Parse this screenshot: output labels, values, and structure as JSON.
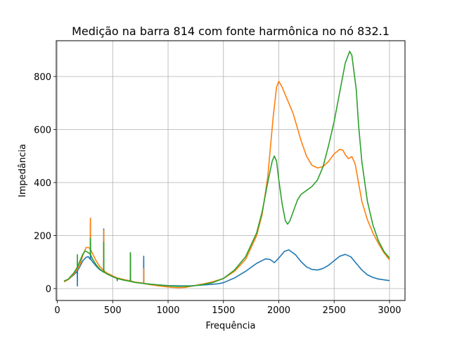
{
  "chart_data": {
    "type": "line",
    "title": "Medição na barra 814 com fonte harmônica no nó 832.1",
    "xlabel": "Frequência",
    "ylabel": "Impedância",
    "xlim": [
      -10,
      3140
    ],
    "ylim": [
      -45,
      935
    ],
    "x_ticks": [
      0,
      500,
      1000,
      1500,
      2000,
      2500,
      3000
    ],
    "y_ticks": [
      0,
      200,
      400,
      600,
      800
    ],
    "grid": true,
    "legend": "none",
    "series": [
      {
        "color": "#1f77b4",
        "points": [
          [
            60,
            28
          ],
          [
            100,
            35
          ],
          [
            150,
            52
          ],
          [
            180,
            65
          ],
          [
            181,
            10
          ],
          [
            182,
            68
          ],
          [
            200,
            80
          ],
          [
            230,
            105
          ],
          [
            260,
            118
          ],
          [
            280,
            120
          ],
          [
            298,
            110
          ],
          [
            299,
            265
          ],
          [
            300,
            112
          ],
          [
            320,
            100
          ],
          [
            350,
            85
          ],
          [
            380,
            72
          ],
          [
            418,
            62
          ],
          [
            419,
            225
          ],
          [
            420,
            63
          ],
          [
            450,
            55
          ],
          [
            500,
            45
          ],
          [
            540,
            38
          ],
          [
            541,
            30
          ],
          [
            542,
            38
          ],
          [
            600,
            32
          ],
          [
            659,
            28
          ],
          [
            660,
            135
          ],
          [
            661,
            28
          ],
          [
            700,
            24
          ],
          [
            779,
            20
          ],
          [
            780,
            122
          ],
          [
            781,
            20
          ],
          [
            800,
            18
          ],
          [
            850,
            16
          ],
          [
            900,
            14
          ],
          [
            1000,
            11
          ],
          [
            1100,
            10
          ],
          [
            1200,
            10
          ],
          [
            1300,
            13
          ],
          [
            1400,
            16
          ],
          [
            1450,
            18
          ],
          [
            1500,
            22
          ],
          [
            1600,
            40
          ],
          [
            1700,
            65
          ],
          [
            1800,
            95
          ],
          [
            1880,
            112
          ],
          [
            1920,
            110
          ],
          [
            1960,
            98
          ],
          [
            2000,
            115
          ],
          [
            2050,
            140
          ],
          [
            2090,
            146
          ],
          [
            2150,
            128
          ],
          [
            2200,
            102
          ],
          [
            2250,
            82
          ],
          [
            2300,
            72
          ],
          [
            2350,
            70
          ],
          [
            2400,
            76
          ],
          [
            2450,
            88
          ],
          [
            2500,
            105
          ],
          [
            2550,
            122
          ],
          [
            2600,
            129
          ],
          [
            2650,
            120
          ],
          [
            2700,
            95
          ],
          [
            2750,
            70
          ],
          [
            2800,
            52
          ],
          [
            2850,
            42
          ],
          [
            2900,
            36
          ],
          [
            3000,
            30
          ]
        ]
      },
      {
        "color": "#ff7f0e",
        "points": [
          [
            60,
            25
          ],
          [
            100,
            34
          ],
          [
            150,
            55
          ],
          [
            200,
            85
          ],
          [
            230,
            125
          ],
          [
            260,
            155
          ],
          [
            280,
            155
          ],
          [
            298,
            150
          ],
          [
            299,
            265
          ],
          [
            300,
            148
          ],
          [
            320,
            130
          ],
          [
            350,
            105
          ],
          [
            380,
            85
          ],
          [
            418,
            68
          ],
          [
            419,
            220
          ],
          [
            420,
            68
          ],
          [
            450,
            58
          ],
          [
            500,
            48
          ],
          [
            540,
            40
          ],
          [
            541,
            32
          ],
          [
            542,
            40
          ],
          [
            600,
            34
          ],
          [
            659,
            29
          ],
          [
            660,
            130
          ],
          [
            661,
            29
          ],
          [
            700,
            24
          ],
          [
            779,
            20
          ],
          [
            780,
            75
          ],
          [
            781,
            20
          ],
          [
            800,
            17
          ],
          [
            850,
            14
          ],
          [
            900,
            11
          ],
          [
            1000,
            6
          ],
          [
            1050,
            4
          ],
          [
            1100,
            3
          ],
          [
            1150,
            4
          ],
          [
            1200,
            8
          ],
          [
            1300,
            16
          ],
          [
            1400,
            25
          ],
          [
            1500,
            38
          ],
          [
            1600,
            65
          ],
          [
            1700,
            110
          ],
          [
            1800,
            200
          ],
          [
            1850,
            280
          ],
          [
            1900,
            420
          ],
          [
            1950,
            650
          ],
          [
            1980,
            760
          ],
          [
            2000,
            782
          ],
          [
            2030,
            760
          ],
          [
            2080,
            710
          ],
          [
            2130,
            660
          ],
          [
            2200,
            560
          ],
          [
            2250,
            500
          ],
          [
            2300,
            465
          ],
          [
            2350,
            455
          ],
          [
            2400,
            460
          ],
          [
            2450,
            480
          ],
          [
            2500,
            508
          ],
          [
            2550,
            525
          ],
          [
            2580,
            522
          ],
          [
            2600,
            505
          ],
          [
            2630,
            490
          ],
          [
            2660,
            498
          ],
          [
            2690,
            470
          ],
          [
            2720,
            400
          ],
          [
            2750,
            330
          ],
          [
            2800,
            260
          ],
          [
            2850,
            210
          ],
          [
            2900,
            170
          ],
          [
            2950,
            135
          ],
          [
            3000,
            108
          ]
        ]
      },
      {
        "color": "#2ca02c",
        "points": [
          [
            60,
            28
          ],
          [
            100,
            36
          ],
          [
            150,
            60
          ],
          [
            180,
            80
          ],
          [
            181,
            128
          ],
          [
            182,
            80
          ],
          [
            200,
            100
          ],
          [
            230,
            130
          ],
          [
            250,
            142
          ],
          [
            270,
            138
          ],
          [
            298,
            130
          ],
          [
            299,
            190
          ],
          [
            300,
            128
          ],
          [
            320,
            110
          ],
          [
            350,
            90
          ],
          [
            380,
            75
          ],
          [
            418,
            62
          ],
          [
            419,
            175
          ],
          [
            420,
            62
          ],
          [
            450,
            55
          ],
          [
            500,
            45
          ],
          [
            540,
            38
          ],
          [
            541,
            30
          ],
          [
            542,
            38
          ],
          [
            600,
            32
          ],
          [
            659,
            27
          ],
          [
            660,
            135
          ],
          [
            661,
            27
          ],
          [
            700,
            23
          ],
          [
            800,
            18
          ],
          [
            900,
            14
          ],
          [
            1000,
            10
          ],
          [
            1100,
            8
          ],
          [
            1200,
            9
          ],
          [
            1300,
            14
          ],
          [
            1400,
            22
          ],
          [
            1500,
            38
          ],
          [
            1600,
            70
          ],
          [
            1700,
            120
          ],
          [
            1800,
            210
          ],
          [
            1850,
            290
          ],
          [
            1900,
            400
          ],
          [
            1940,
            480
          ],
          [
            1960,
            500
          ],
          [
            1980,
            480
          ],
          [
            2000,
            410
          ],
          [
            2030,
            320
          ],
          [
            2060,
            255
          ],
          [
            2080,
            243
          ],
          [
            2100,
            255
          ],
          [
            2130,
            290
          ],
          [
            2170,
            335
          ],
          [
            2200,
            355
          ],
          [
            2250,
            370
          ],
          [
            2300,
            385
          ],
          [
            2350,
            410
          ],
          [
            2400,
            460
          ],
          [
            2450,
            540
          ],
          [
            2500,
            630
          ],
          [
            2550,
            740
          ],
          [
            2600,
            850
          ],
          [
            2640,
            895
          ],
          [
            2660,
            880
          ],
          [
            2700,
            750
          ],
          [
            2720,
            620
          ],
          [
            2750,
            480
          ],
          [
            2800,
            330
          ],
          [
            2850,
            240
          ],
          [
            2900,
            180
          ],
          [
            2950,
            140
          ],
          [
            3000,
            115
          ]
        ]
      }
    ]
  }
}
